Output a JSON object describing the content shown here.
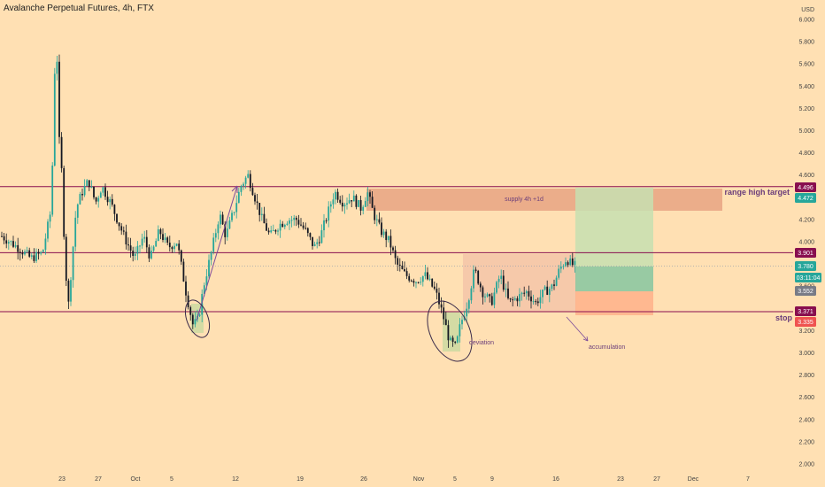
{
  "header": {
    "title": "Avalanche Perpetual Futures, 4h, FTX"
  },
  "chart_data": {
    "type": "candlestick",
    "currency_label": "USD",
    "ylim": [
      2.0,
      6.2
    ],
    "y_ticks": [
      "6.000",
      "5.800",
      "5.600",
      "5.400",
      "5.200",
      "5.000",
      "4.800",
      "4.600",
      "4.400",
      "4.200",
      "4.000",
      "3.800",
      "3.600",
      "3.400",
      "3.200",
      "3.000",
      "2.800",
      "2.600",
      "2.400",
      "2.200",
      "2.000"
    ],
    "x_ticks": [
      "23",
      "27",
      "Oct",
      "5",
      "12",
      "19",
      "26",
      "Nov",
      "5",
      "9",
      "16",
      "23",
      "27",
      "Dec",
      "7"
    ],
    "grid": false,
    "colors": {
      "up": "#26a69a",
      "down": "#131722",
      "level_line": "#880e4f",
      "supply_zone": "#e8a383",
      "range_box": "#f5c7a9",
      "target_zone": "#c7dfb0",
      "profit_zone": "#86c6a0",
      "stop_zone": "#ffb08a",
      "annotation": "#6a3d7a"
    },
    "horizontal_levels": [
      {
        "price": 4.496,
        "label": "range high target"
      },
      {
        "price": 3.901,
        "label": ""
      },
      {
        "price": 3.371,
        "label": "stop"
      }
    ],
    "price_badges": [
      {
        "text": "4.496",
        "color": "#880e4f"
      },
      {
        "text": "4.472",
        "color": "#26a69a"
      },
      {
        "text": "3.901",
        "color": "#880e4f"
      },
      {
        "text": "3.780",
        "color": "#26a69a"
      },
      {
        "text": "03:11:04",
        "color": "#26a69a"
      },
      {
        "text": "3.552",
        "color": "#787b86"
      },
      {
        "text": "3.371",
        "color": "#880e4f"
      },
      {
        "text": "3.335",
        "color": "#ef5350"
      }
    ],
    "annotations": [
      "supply 4h +1d",
      "deviation",
      "accumulation"
    ],
    "last_price": 3.78
  }
}
